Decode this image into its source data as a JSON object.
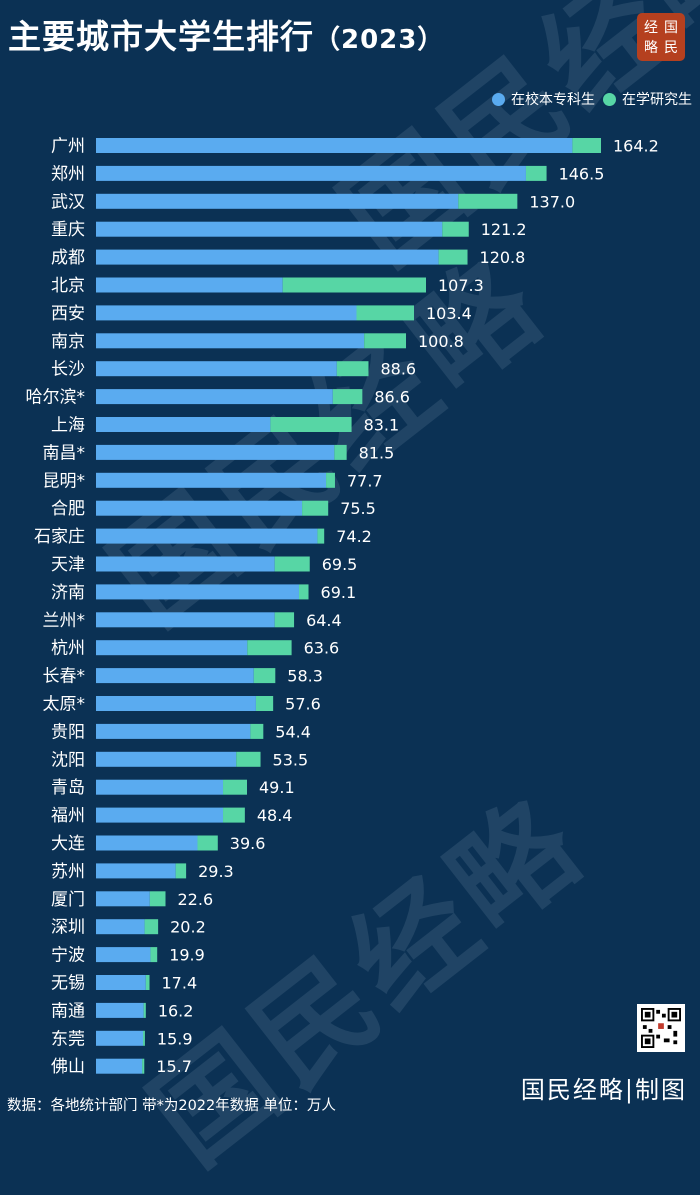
{
  "header": {
    "title": "主要城市大学生排行",
    "year": "（2023）"
  },
  "logo": {
    "chars": [
      "经",
      "国",
      "略",
      "民"
    ]
  },
  "legend": {
    "undergrad_label": "在校本专科生",
    "grad_label": "在学研究生"
  },
  "colors": {
    "background": "#0b3154",
    "undergrad": "#5aabf0",
    "grad": "#57d6a5",
    "logo": "#b5401f"
  },
  "watermark": {
    "text": "国民经略"
  },
  "chart_data": {
    "type": "bar",
    "orientation": "horizontal",
    "stacked": true,
    "categories": [
      "广州",
      "郑州",
      "武汉",
      "重庆",
      "成都",
      "北京",
      "西安",
      "南京",
      "长沙",
      "哈尔滨*",
      "上海",
      "南昌*",
      "昆明*",
      "合肥",
      "石家庄",
      "天津",
      "济南",
      "兰州*",
      "杭州",
      "长春*",
      "太原*",
      "贵阳",
      "沈阳",
      "青岛",
      "福州",
      "大连",
      "苏州",
      "厦门",
      "深圳",
      "宁波",
      "无锡",
      "南通",
      "东莞",
      "佛山"
    ],
    "totals": [
      164.2,
      146.5,
      137.0,
      121.2,
      120.8,
      107.3,
      103.4,
      100.8,
      88.6,
      86.6,
      83.1,
      81.5,
      77.7,
      75.5,
      74.2,
      69.5,
      69.1,
      64.4,
      63.6,
      58.3,
      57.6,
      54.4,
      53.5,
      49.1,
      48.4,
      39.6,
      29.3,
      22.6,
      20.2,
      19.9,
      17.4,
      16.2,
      15.9,
      15.7
    ],
    "total_labels": [
      "164.2",
      "146.5",
      "137.0",
      "121.2",
      "120.8",
      "107.3",
      "103.4",
      "100.8",
      "88.6",
      "86.6",
      "83.1",
      "81.5",
      "77.7",
      "75.5",
      "74.2",
      "69.5",
      "69.1",
      "64.4",
      "63.6",
      "58.3",
      "57.6",
      "54.4",
      "53.5",
      "49.1",
      "48.4",
      "39.6",
      "29.3",
      "22.6",
      "20.2",
      "19.9",
      "17.4",
      "16.2",
      "15.9",
      "15.7"
    ],
    "series": [
      {
        "name": "在校本专科生",
        "values": [
          154.9,
          139.8,
          117.8,
          112.6,
          111.4,
          60.7,
          84.7,
          87.2,
          78.3,
          77.0,
          56.7,
          77.5,
          74.8,
          67.0,
          72.0,
          58.1,
          66.0,
          58.1,
          49.2,
          51.3,
          52.0,
          50.2,
          45.6,
          41.3,
          41.3,
          33.0,
          25.9,
          17.5,
          15.8,
          17.7,
          16.2,
          15.5,
          15.3,
          15.0
        ]
      },
      {
        "name": "在学研究生",
        "values": [
          9.3,
          6.7,
          19.2,
          8.6,
          9.4,
          46.6,
          18.7,
          13.6,
          10.3,
          9.6,
          26.4,
          4.0,
          2.9,
          8.5,
          2.2,
          11.4,
          3.1,
          6.3,
          14.4,
          7.0,
          5.6,
          4.2,
          7.9,
          7.8,
          7.1,
          6.6,
          3.4,
          5.1,
          4.4,
          2.2,
          1.2,
          0.7,
          0.6,
          0.7
        ]
      }
    ],
    "xlim": [
      0,
      164.2
    ]
  },
  "footer": {
    "note": "数据：各地统计部门  带*为2022年数据  单位：万人",
    "brand": "国民经略|制图"
  }
}
